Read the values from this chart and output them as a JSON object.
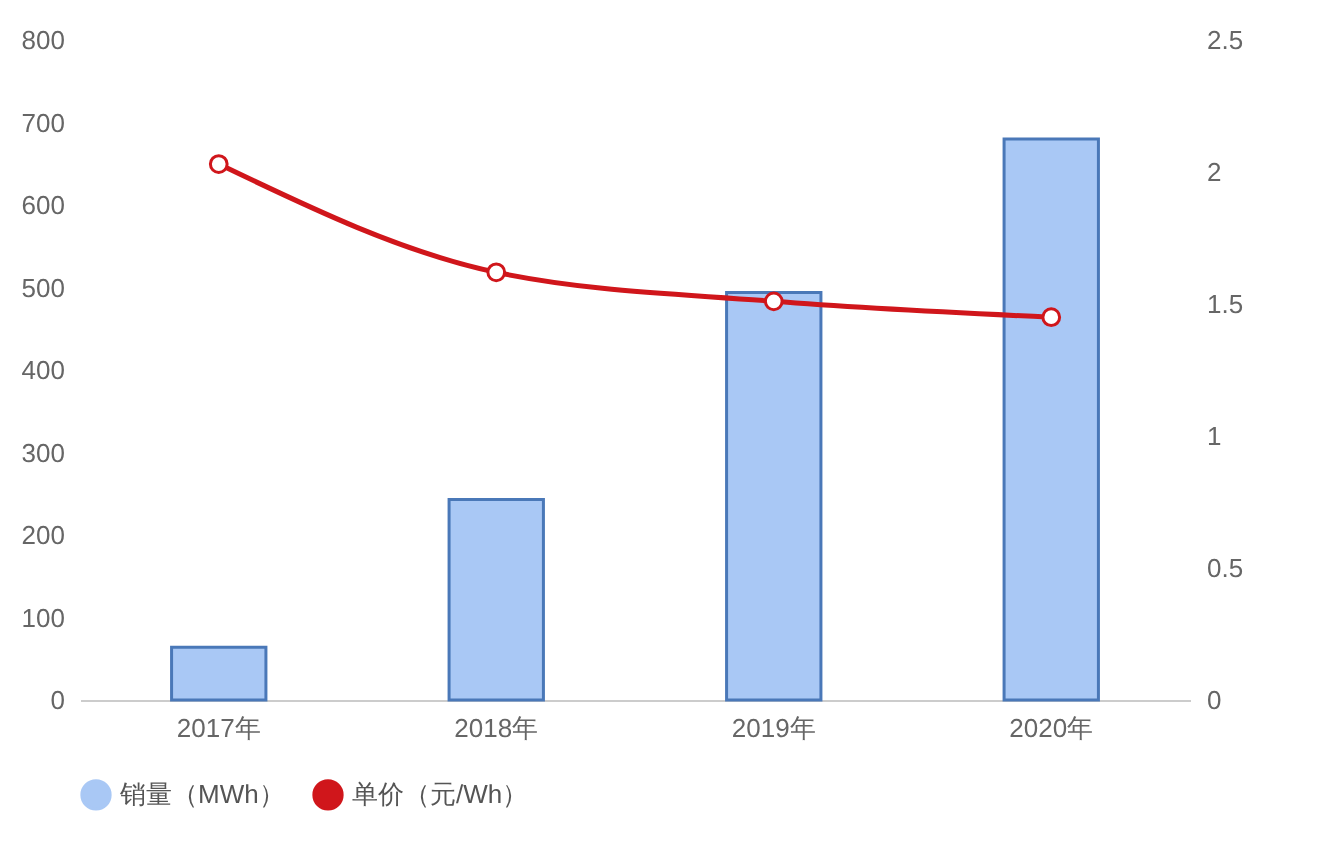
{
  "chart_data": {
    "type": "bar",
    "categories": [
      "2017年",
      "2018年",
      "2019年",
      "2020年"
    ],
    "series": [
      {
        "name": "销量（MWh）",
        "color": "#a9c8f5",
        "values": [
          64,
          243,
          494,
          680
        ]
      },
      {
        "name": "单价（元/Wh）",
        "type": "line",
        "axis": "y2",
        "color": "#d0161b",
        "values": [
          2.03,
          1.62,
          1.51,
          1.45
        ]
      }
    ],
    "ylim": [
      0,
      800
    ],
    "yticks": [
      0,
      100,
      200,
      300,
      400,
      500,
      600,
      700,
      800
    ],
    "y2lim": [
      0,
      2.5
    ],
    "y2ticks": [
      0,
      0.5,
      1,
      1.5,
      2,
      2.5
    ],
    "legend": "bottom",
    "grid": false,
    "marker": "circle",
    "line_style": "solid"
  }
}
